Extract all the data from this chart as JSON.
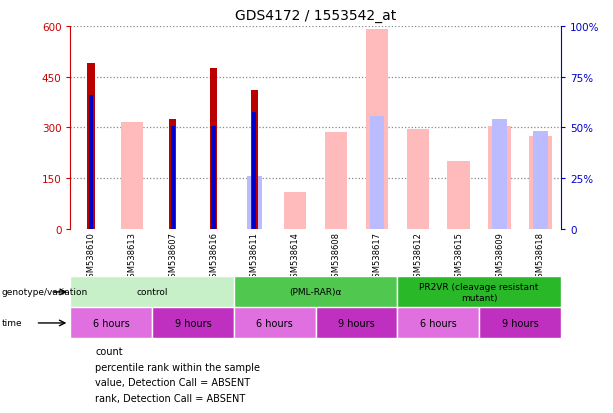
{
  "title": "GDS4172 / 1553542_at",
  "samples": [
    "GSM538610",
    "GSM538613",
    "GSM538607",
    "GSM538616",
    "GSM538611",
    "GSM538614",
    "GSM538608",
    "GSM538617",
    "GSM538612",
    "GSM538615",
    "GSM538609",
    "GSM538618"
  ],
  "count_values": [
    490,
    null,
    325,
    475,
    410,
    null,
    null,
    null,
    null,
    null,
    null,
    null
  ],
  "percentile_values": [
    395,
    null,
    305,
    305,
    345,
    null,
    null,
    null,
    null,
    null,
    null,
    null
  ],
  "absent_value_values": [
    null,
    315,
    null,
    null,
    null,
    110,
    285,
    590,
    295,
    200,
    305,
    275
  ],
  "absent_rank_values": [
    null,
    null,
    null,
    null,
    155,
    null,
    null,
    335,
    null,
    null,
    325,
    290
  ],
  "ylim": [
    0,
    600
  ],
  "y2lim": [
    0,
    100
  ],
  "yticks": [
    0,
    150,
    300,
    450,
    600
  ],
  "ytick_labels": [
    "0",
    "150",
    "300",
    "450",
    "600"
  ],
  "y2ticks": [
    0,
    25,
    50,
    75,
    100
  ],
  "y2tick_labels": [
    "0",
    "25%",
    "50%",
    "75%",
    "100%"
  ],
  "groups": [
    {
      "label": "control",
      "start": 0,
      "end": 4,
      "color": "#c8f0c8"
    },
    {
      "label": "(PML-RAR)α",
      "start": 4,
      "end": 8,
      "color": "#50c850"
    },
    {
      "label": "PR2VR (cleavage resistant\nmutant)",
      "start": 8,
      "end": 12,
      "color": "#28b828"
    }
  ],
  "time_groups": [
    {
      "label": "6 hours",
      "start": 0,
      "end": 2,
      "color": "#e070e0"
    },
    {
      "label": "9 hours",
      "start": 2,
      "end": 4,
      "color": "#c030c0"
    },
    {
      "label": "6 hours",
      "start": 4,
      "end": 6,
      "color": "#e070e0"
    },
    {
      "label": "9 hours",
      "start": 6,
      "end": 8,
      "color": "#c030c0"
    },
    {
      "label": "6 hours",
      "start": 8,
      "end": 10,
      "color": "#e070e0"
    },
    {
      "label": "9 hours",
      "start": 10,
      "end": 12,
      "color": "#c030c0"
    }
  ],
  "count_color": "#bb0000",
  "percentile_color": "#0000cc",
  "absent_value_color": "#ffbbbb",
  "absent_rank_color": "#bbbbff",
  "left_axis_color": "#cc0000",
  "right_axis_color": "#0000cc",
  "grid_color": "#888888",
  "bg_color": "#ffffff",
  "tick_area_color": "#cccccc",
  "absent_bar_width": 0.55,
  "count_bar_width": 0.18,
  "percentile_bar_width": 0.1
}
